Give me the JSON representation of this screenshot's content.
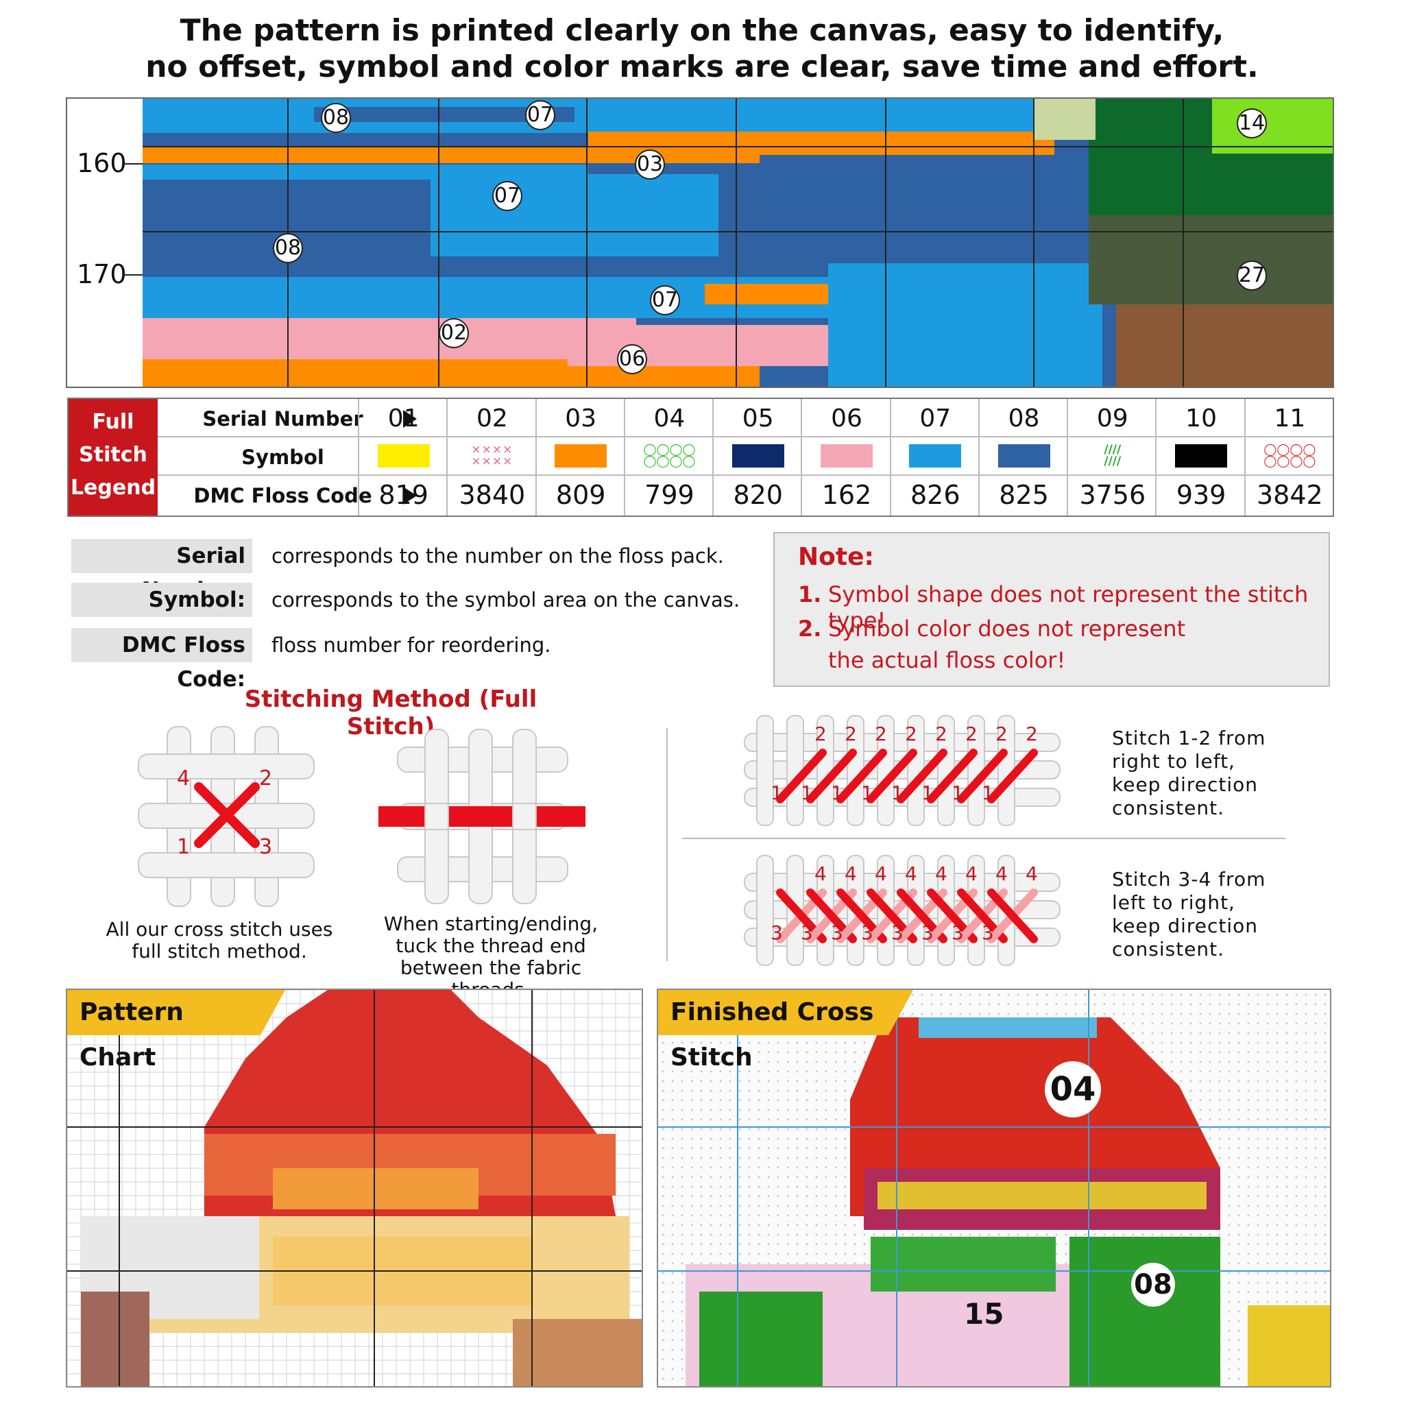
{
  "headline": {
    "line1": "The pattern is printed clearly on the canvas, easy to identify,",
    "line2": "no offset, symbol and color marks are clear, save time and effort."
  },
  "pattern": {
    "row_labels": [
      "160",
      "170"
    ],
    "zones": [
      "08",
      "07",
      "03",
      "07",
      "08",
      "07",
      "02",
      "06",
      "14",
      "27"
    ]
  },
  "legend": {
    "head": [
      "Full",
      "Stitch",
      "Legend"
    ],
    "row_labels": {
      "serial": "Serial Number",
      "symbol": "Symbol",
      "code": "DMC Floss Code"
    },
    "items": [
      {
        "serial": "01",
        "code": "819",
        "color": "#ffee00",
        "symbol": "solid"
      },
      {
        "serial": "02",
        "code": "3840",
        "color": "#e0608a",
        "symbol": "xx"
      },
      {
        "serial": "03",
        "code": "809",
        "color": "#ff8c00",
        "symbol": "solid"
      },
      {
        "serial": "04",
        "code": "799",
        "color": "#22bb22",
        "symbol": "oo"
      },
      {
        "serial": "05",
        "code": "820",
        "color": "#0d2a6b",
        "symbol": "solid"
      },
      {
        "serial": "06",
        "code": "162",
        "color": "#f4a6b4",
        "symbol": "solid"
      },
      {
        "serial": "07",
        "code": "826",
        "color": "#1d9be0",
        "symbol": "solid"
      },
      {
        "serial": "08",
        "code": "825",
        "color": "#2e62a3",
        "symbol": "solid"
      },
      {
        "serial": "09",
        "code": "3756",
        "color": "#22aa22",
        "symbol": "slash"
      },
      {
        "serial": "10",
        "code": "939",
        "color": "#000000",
        "symbol": "solid"
      },
      {
        "serial": "11",
        "code": "3842",
        "color": "#e02020",
        "symbol": "oo"
      }
    ]
  },
  "explanations": [
    {
      "label": "Serial Number:",
      "text": "corresponds to the number on the floss pack."
    },
    {
      "label": "Symbol:",
      "text": "corresponds to the symbol area on the canvas."
    },
    {
      "label": "DMC Floss Code:",
      "text": "floss number for reordering."
    }
  ],
  "note": {
    "title": "Note:",
    "n1": "1.",
    "line1": "Symbol shape does not represent the stitch type!",
    "n2": "2.",
    "line2a": "Symbol color does not represent",
    "line2b": "the actual floss color!"
  },
  "stitching": {
    "title": "Stitching Method (Full Stitch)",
    "caption_left": [
      "All our cross stitch uses",
      "full stitch method."
    ],
    "caption_mid": [
      "When starting/ending,",
      "tuck the thread end",
      "between the fabric threads."
    ],
    "right_top": [
      "Stitch 1-2 from",
      "right to left,",
      "keep direction",
      "consistent."
    ],
    "right_bottom": [
      "Stitch 3-4 from",
      "left to right,",
      "keep direction",
      "consistent."
    ],
    "corner_numbers": {
      "tl": "4",
      "tr": "2",
      "bl": "1",
      "br": "3"
    },
    "row_top_upper": "2",
    "row_top_lower": "1",
    "row_bottom_upper": "4",
    "row_bottom_lower": "3"
  },
  "panels": {
    "left_title": "Pattern Chart",
    "right_title": "Finished Cross Stitch",
    "right_labels": [
      "04",
      "08",
      "15"
    ]
  },
  "colors": {
    "accent_red": "#c8161d",
    "tag_yellow": "#f4bc1e"
  }
}
